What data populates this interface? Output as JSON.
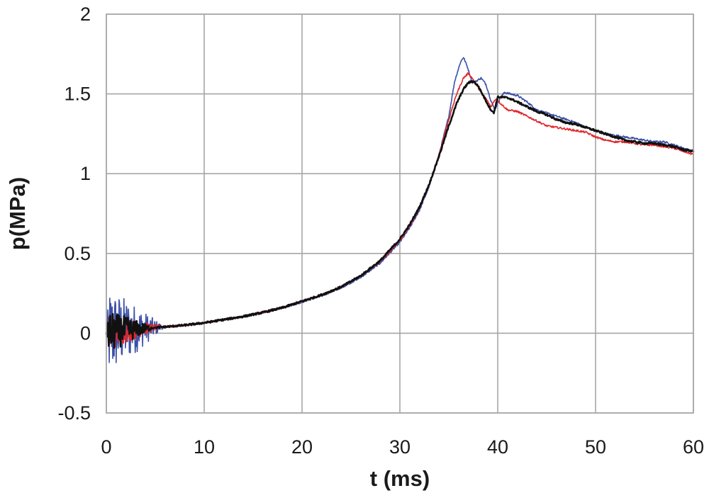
{
  "chart_data": {
    "type": "line",
    "title": "",
    "xlabel": "t (ms)",
    "ylabel": "p(MPa)",
    "xlim": [
      0,
      60
    ],
    "ylim": [
      -0.5,
      2
    ],
    "x_ticks": [
      0,
      10,
      20,
      30,
      40,
      50,
      60
    ],
    "y_ticks": [
      -0.5,
      0,
      0.5,
      1,
      1.5,
      2
    ],
    "x_tick_labels": [
      "0",
      "10",
      "20",
      "30",
      "40",
      "50",
      "60"
    ],
    "y_tick_labels": [
      "-0.5",
      "0",
      "0.5",
      "1",
      "1.5",
      "2"
    ],
    "grid": true,
    "legend": "none",
    "series": [
      {
        "color": "#3a4fa6",
        "points": [
          [
            0,
            0
          ],
          [
            1,
            0.01
          ],
          [
            2,
            0.02
          ],
          [
            3,
            0.025
          ],
          [
            4,
            0.03
          ],
          [
            5,
            0.035
          ],
          [
            6,
            0.04
          ],
          [
            8,
            0.05
          ],
          [
            10,
            0.065
          ],
          [
            12,
            0.085
          ],
          [
            14,
            0.105
          ],
          [
            16,
            0.13
          ],
          [
            18,
            0.16
          ],
          [
            20,
            0.195
          ],
          [
            22,
            0.235
          ],
          [
            24,
            0.285
          ],
          [
            26,
            0.35
          ],
          [
            28,
            0.44
          ],
          [
            30,
            0.57
          ],
          [
            31,
            0.66
          ],
          [
            32,
            0.77
          ],
          [
            33,
            0.92
          ],
          [
            34,
            1.12
          ],
          [
            35,
            1.36
          ],
          [
            35.6,
            1.58
          ],
          [
            36.2,
            1.7
          ],
          [
            36.5,
            1.73
          ],
          [
            36.9,
            1.67
          ],
          [
            37.4,
            1.57
          ],
          [
            37.8,
            1.58
          ],
          [
            38.3,
            1.6
          ],
          [
            38.8,
            1.56
          ],
          [
            39.3,
            1.46
          ],
          [
            39.7,
            1.4
          ],
          [
            40.2,
            1.47
          ],
          [
            40.7,
            1.51
          ],
          [
            41.3,
            1.5
          ],
          [
            42,
            1.49
          ],
          [
            43,
            1.45
          ],
          [
            44,
            1.4
          ],
          [
            45,
            1.38
          ],
          [
            46,
            1.36
          ],
          [
            47,
            1.34
          ],
          [
            48,
            1.32
          ],
          [
            49,
            1.29
          ],
          [
            50,
            1.27
          ],
          [
            51,
            1.25
          ],
          [
            52,
            1.24
          ],
          [
            53,
            1.23
          ],
          [
            54,
            1.22
          ],
          [
            55,
            1.21
          ],
          [
            56,
            1.2
          ],
          [
            57,
            1.2
          ],
          [
            58,
            1.18
          ],
          [
            59,
            1.16
          ],
          [
            60,
            1.14
          ]
        ],
        "noise": {
          "from": 0,
          "to": 6,
          "amplitude": 0.3
        }
      },
      {
        "color": "#e0262a",
        "points": [
          [
            0,
            0
          ],
          [
            1,
            0.01
          ],
          [
            2,
            0.02
          ],
          [
            3,
            0.025
          ],
          [
            4,
            0.03
          ],
          [
            5,
            0.035
          ],
          [
            6,
            0.04
          ],
          [
            8,
            0.05
          ],
          [
            10,
            0.065
          ],
          [
            12,
            0.085
          ],
          [
            14,
            0.105
          ],
          [
            16,
            0.13
          ],
          [
            18,
            0.16
          ],
          [
            20,
            0.2
          ],
          [
            22,
            0.24
          ],
          [
            24,
            0.29
          ],
          [
            26,
            0.36
          ],
          [
            28,
            0.45
          ],
          [
            30,
            0.58
          ],
          [
            31,
            0.67
          ],
          [
            32,
            0.78
          ],
          [
            33,
            0.93
          ],
          [
            34,
            1.12
          ],
          [
            35,
            1.34
          ],
          [
            35.8,
            1.5
          ],
          [
            36.5,
            1.6
          ],
          [
            37,
            1.63
          ],
          [
            37.5,
            1.59
          ],
          [
            38.2,
            1.52
          ],
          [
            38.8,
            1.47
          ],
          [
            39.3,
            1.42
          ],
          [
            39.8,
            1.47
          ],
          [
            40.3,
            1.44
          ],
          [
            41,
            1.4
          ],
          [
            42,
            1.39
          ],
          [
            43,
            1.36
          ],
          [
            44,
            1.33
          ],
          [
            45,
            1.3
          ],
          [
            46,
            1.29
          ],
          [
            47,
            1.28
          ],
          [
            48,
            1.27
          ],
          [
            49,
            1.26
          ],
          [
            50,
            1.23
          ],
          [
            51,
            1.21
          ],
          [
            52,
            1.2
          ],
          [
            53,
            1.2
          ],
          [
            54,
            1.19
          ],
          [
            55,
            1.18
          ],
          [
            56,
            1.18
          ],
          [
            57,
            1.17
          ],
          [
            58,
            1.16
          ],
          [
            59,
            1.14
          ],
          [
            60,
            1.12
          ]
        ],
        "noise": {
          "from": 0,
          "to": 6,
          "amplitude": 0.12
        }
      },
      {
        "color": "#111111",
        "points": [
          [
            0,
            0
          ],
          [
            1,
            0.01
          ],
          [
            2,
            0.02
          ],
          [
            3,
            0.025
          ],
          [
            4,
            0.03
          ],
          [
            5,
            0.035
          ],
          [
            6,
            0.04
          ],
          [
            8,
            0.05
          ],
          [
            10,
            0.065
          ],
          [
            12,
            0.085
          ],
          [
            14,
            0.105
          ],
          [
            16,
            0.13
          ],
          [
            18,
            0.16
          ],
          [
            20,
            0.2
          ],
          [
            22,
            0.24
          ],
          [
            24,
            0.29
          ],
          [
            26,
            0.36
          ],
          [
            28,
            0.455
          ],
          [
            30,
            0.59
          ],
          [
            31,
            0.68
          ],
          [
            32,
            0.79
          ],
          [
            33,
            0.935
          ],
          [
            34,
            1.11
          ],
          [
            35,
            1.3
          ],
          [
            35.8,
            1.44
          ],
          [
            36.5,
            1.53
          ],
          [
            37,
            1.57
          ],
          [
            37.5,
            1.58
          ],
          [
            38,
            1.55
          ],
          [
            38.6,
            1.48
          ],
          [
            39.2,
            1.41
          ],
          [
            39.6,
            1.38
          ],
          [
            40,
            1.48
          ],
          [
            40.6,
            1.48
          ],
          [
            41.3,
            1.47
          ],
          [
            42,
            1.45
          ],
          [
            43,
            1.42
          ],
          [
            44,
            1.39
          ],
          [
            45,
            1.37
          ],
          [
            46,
            1.34
          ],
          [
            47,
            1.32
          ],
          [
            48,
            1.31
          ],
          [
            49,
            1.29
          ],
          [
            50,
            1.27
          ],
          [
            51,
            1.25
          ],
          [
            52,
            1.23
          ],
          [
            53,
            1.21
          ],
          [
            54,
            1.2
          ],
          [
            55,
            1.19
          ],
          [
            56,
            1.19
          ],
          [
            57,
            1.18
          ],
          [
            58,
            1.17
          ],
          [
            59,
            1.15
          ],
          [
            60,
            1.14
          ]
        ],
        "noise": {
          "from": 0,
          "to": 5,
          "amplitude": 0.14
        }
      }
    ]
  }
}
